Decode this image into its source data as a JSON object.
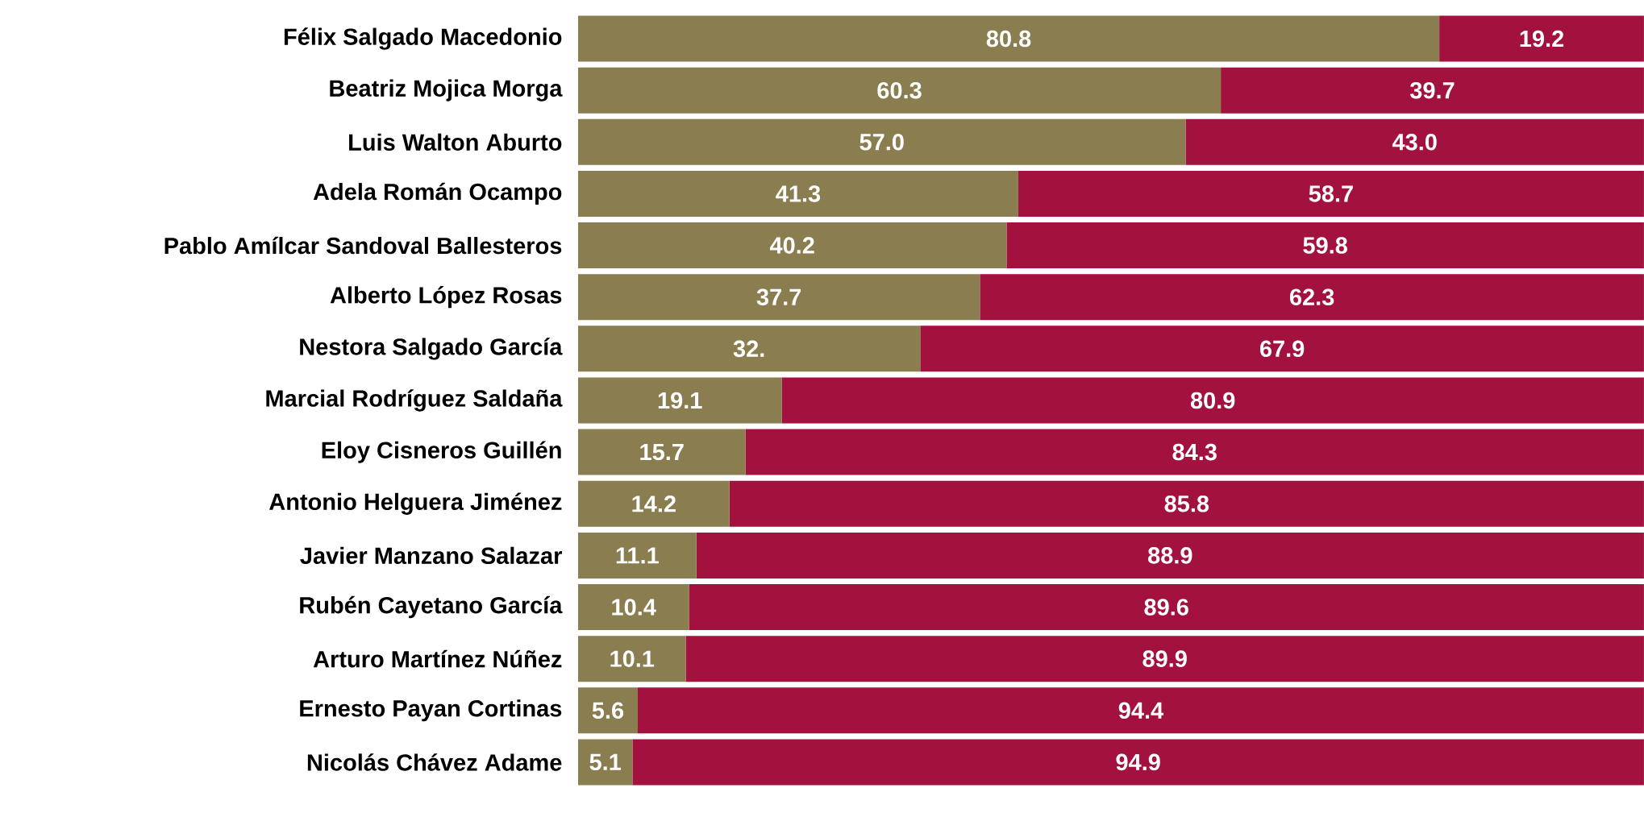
{
  "chart_data": {
    "type": "bar",
    "orientation": "horizontal",
    "stacked": true,
    "tick_labels": "y",
    "categories": [
      "Félix Salgado Macedonio",
      "Beatriz Mojica Morga",
      "Luis Walton Aburto",
      "Adela Román Ocampo",
      "Pablo Amílcar Sandoval Ballesteros",
      "Alberto López Rosas",
      "Nestora Salgado García",
      "Marcial Rodríguez Saldaña",
      "Eloy Cisneros Guillén",
      "Antonio Helguera Jiménez",
      "Javier Manzano Salazar",
      "Rubén Cayetano García",
      "Arturo Martínez Núñez",
      "Ernesto Payan Cortinas",
      "Nicolás Chávez Adame"
    ],
    "series": [
      {
        "color": "#8a7d50",
        "values": [
          80.8,
          60.3,
          57.0,
          41.3,
          40.2,
          37.7,
          32.1,
          19.1,
          15.7,
          14.2,
          11.1,
          10.4,
          10.1,
          5.6,
          5.1
        ],
        "value_labels": [
          "80.8",
          "60.3",
          "57.0",
          "41.3",
          "40.2",
          "37.7",
          "32.",
          "19.1",
          "15.7",
          "14.2",
          "11.1",
          "10.4",
          "10.1",
          "5.6",
          "5.1"
        ]
      },
      {
        "color": "#a3123f",
        "values": [
          19.2,
          39.7,
          43.0,
          58.7,
          59.8,
          62.3,
          67.9,
          80.9,
          84.3,
          85.8,
          88.9,
          89.6,
          89.9,
          94.4,
          94.9
        ],
        "value_labels": [
          "19.2",
          "39.7",
          "43.0",
          "58.7",
          "59.8",
          "62.3",
          "67.9",
          "80.9",
          "84.3",
          "85.8",
          "88.9",
          "89.6",
          "89.9",
          "94.4",
          "94.9"
        ]
      }
    ]
  }
}
